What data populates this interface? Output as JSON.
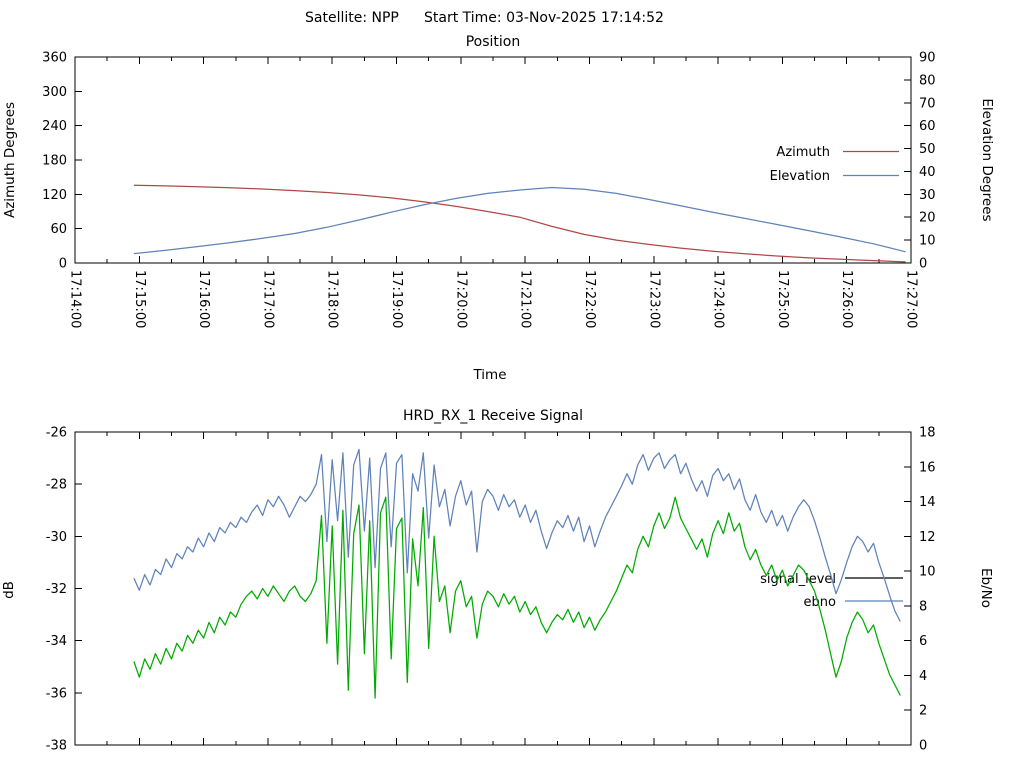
{
  "header": {
    "satellite_label": "Satellite: NPP",
    "start_time_label": "Start Time: 03-Nov-2025 17:14:52"
  },
  "chart_data": [
    {
      "type": "line",
      "title": "Position",
      "xlabel": "Time",
      "x_axis": {
        "tick_labels": [
          "17:14:00",
          "17:15:00",
          "17:16:00",
          "17:17:00",
          "17:18:00",
          "17:19:00",
          "17:20:00",
          "17:21:00",
          "17:22:00",
          "17:23:00",
          "17:24:00",
          "17:25:00",
          "17:26:00",
          "17:27:00"
        ],
        "range_seconds": [
          0,
          780
        ],
        "major_step_s": 60,
        "minor_step_s": 30
      },
      "y_left": {
        "label": "Azimuth Degrees",
        "min": 0,
        "max": 360,
        "tick_step": 60
      },
      "y_right": {
        "label": "Elevation Degrees",
        "min": 0,
        "max": 90,
        "tick_step": 10
      },
      "legend": {
        "position": "inside-right",
        "entries": [
          {
            "label": "Azimuth",
            "sample_color": "#b04846"
          },
          {
            "label": "Elevation",
            "sample_color": "#5f82b8"
          }
        ]
      },
      "series": [
        {
          "name": "Azimuth",
          "axis": "left",
          "color": "#b04846",
          "t0": 55,
          "dt": 30,
          "values": [
            136,
            134.8,
            133.4,
            131.6,
            129.4,
            126.6,
            123.2,
            119.0,
            113.8,
            107.2,
            99.0,
            90.0,
            80.0,
            64.0,
            50.0,
            40.0,
            32.5,
            26.0,
            20.5,
            16.0,
            12.2,
            9.0,
            6.4,
            4.2,
            2.0
          ]
        },
        {
          "name": "Elevation",
          "axis": "right",
          "color": "#5f82b8",
          "t0": 55,
          "dt": 30,
          "values": [
            4.1,
            5.6,
            7.2,
            8.9,
            10.8,
            12.9,
            15.6,
            18.8,
            22.2,
            25.4,
            28.2,
            30.4,
            31.9,
            33.0,
            32.2,
            30.4,
            27.8,
            25.0,
            22.2,
            19.5,
            16.8,
            14.1,
            11.3,
            8.4,
            4.9
          ]
        }
      ]
    },
    {
      "type": "line",
      "title": "HRD_RX_1 Receive Signal",
      "xlabel": "",
      "x_axis": {
        "tick_labels": [],
        "range_seconds": [
          0,
          780
        ],
        "major_step_s": 60,
        "minor_step_s": 30
      },
      "y_left": {
        "label": "dB",
        "min": -38,
        "max": -26,
        "tick_step": 2
      },
      "y_right": {
        "label": "Eb/No",
        "min": 0,
        "max": 18,
        "tick_step": 2
      },
      "legend": {
        "position": "inside-right",
        "entries": [
          {
            "label": "signal_level",
            "sample_color": "#000000"
          },
          {
            "label": "ebno",
            "sample_color": "#5f82b8"
          }
        ]
      },
      "series": [
        {
          "name": "signal_level",
          "axis": "left",
          "color": "#00aa00",
          "t0": 55,
          "dt": 5,
          "values": [
            -34.8,
            -35.4,
            -34.7,
            -35.1,
            -34.5,
            -34.9,
            -34.3,
            -34.7,
            -34.1,
            -34.4,
            -33.8,
            -34.1,
            -33.6,
            -33.9,
            -33.3,
            -33.7,
            -33.1,
            -33.4,
            -32.9,
            -33.1,
            -32.6,
            -32.3,
            -32.1,
            -32.4,
            -32.0,
            -32.3,
            -31.9,
            -32.2,
            -32.5,
            -32.1,
            -31.9,
            -32.3,
            -32.5,
            -32.2,
            -31.7,
            -29.2,
            -34.1,
            -29.6,
            -34.9,
            -29.0,
            -35.9,
            -29.9,
            -28.8,
            -34.5,
            -29.4,
            -36.2,
            -29.1,
            -28.5,
            -34.7,
            -29.7,
            -29.3,
            -35.6,
            -30.1,
            -31.9,
            -28.9,
            -34.3,
            -30.0,
            -32.5,
            -31.9,
            -33.7,
            -32.1,
            -31.7,
            -32.7,
            -32.3,
            -33.9,
            -32.6,
            -32.1,
            -32.3,
            -32.7,
            -32.2,
            -32.6,
            -32.3,
            -32.9,
            -32.5,
            -33.0,
            -32.7,
            -33.3,
            -33.7,
            -33.3,
            -33.0,
            -33.2,
            -32.8,
            -33.3,
            -32.9,
            -33.5,
            -33.1,
            -33.6,
            -33.2,
            -32.9,
            -32.5,
            -32.1,
            -31.6,
            -31.1,
            -31.4,
            -30.5,
            -30.0,
            -30.4,
            -29.6,
            -29.1,
            -29.7,
            -29.3,
            -28.5,
            -29.3,
            -29.7,
            -30.1,
            -30.5,
            -30.1,
            -30.8,
            -29.9,
            -29.4,
            -29.9,
            -29.1,
            -29.8,
            -29.5,
            -30.4,
            -30.9,
            -30.5,
            -31.1,
            -31.5,
            -31.1,
            -31.7,
            -31.3,
            -31.9,
            -31.5,
            -31.1,
            -31.3,
            -31.7,
            -32.1,
            -32.8,
            -33.6,
            -34.5,
            -35.4,
            -34.8,
            -33.9,
            -33.3,
            -32.9,
            -33.2,
            -33.7,
            -33.4,
            -34.1,
            -34.7,
            -35.3,
            -35.7,
            -36.1
          ]
        },
        {
          "name": "ebno",
          "axis": "right",
          "color": "#5f82b8",
          "t0": 55,
          "dt": 5,
          "values": [
            9.6,
            8.9,
            9.8,
            9.2,
            10.1,
            9.8,
            10.7,
            10.2,
            11.0,
            10.7,
            11.4,
            11.1,
            11.9,
            11.4,
            12.2,
            11.7,
            12.5,
            12.2,
            12.8,
            12.5,
            13.1,
            12.8,
            13.4,
            13.8,
            13.2,
            14.1,
            13.7,
            14.3,
            13.8,
            13.1,
            13.7,
            14.3,
            14.0,
            14.4,
            15.0,
            16.7,
            11.7,
            16.4,
            12.9,
            16.8,
            10.8,
            16.1,
            17.0,
            12.3,
            16.5,
            10.2,
            15.9,
            16.8,
            11.4,
            16.2,
            16.7,
            9.9,
            15.6,
            14.6,
            16.8,
            11.9,
            16.1,
            13.7,
            14.7,
            12.6,
            14.3,
            15.2,
            13.8,
            14.6,
            11.1,
            14.0,
            14.7,
            14.3,
            13.5,
            14.4,
            13.7,
            14.1,
            13.1,
            13.8,
            12.8,
            13.5,
            12.3,
            11.3,
            12.2,
            12.9,
            12.5,
            13.2,
            12.3,
            13.1,
            11.7,
            12.6,
            11.4,
            12.3,
            13.1,
            13.7,
            14.3,
            14.9,
            15.6,
            15.0,
            16.1,
            16.7,
            15.8,
            16.5,
            16.8,
            15.9,
            16.4,
            16.7,
            15.6,
            16.2,
            15.3,
            14.6,
            15.2,
            14.3,
            15.5,
            15.9,
            15.2,
            15.6,
            14.7,
            15.3,
            14.1,
            13.5,
            14.4,
            13.4,
            12.8,
            13.5,
            12.6,
            13.2,
            12.3,
            13.1,
            13.7,
            14.1,
            13.7,
            12.9,
            11.9,
            10.8,
            9.8,
            8.7,
            9.5,
            10.5,
            11.4,
            12.0,
            11.7,
            11.1,
            11.6,
            10.5,
            9.6,
            8.6,
            7.7,
            7.1
          ]
        }
      ]
    }
  ]
}
